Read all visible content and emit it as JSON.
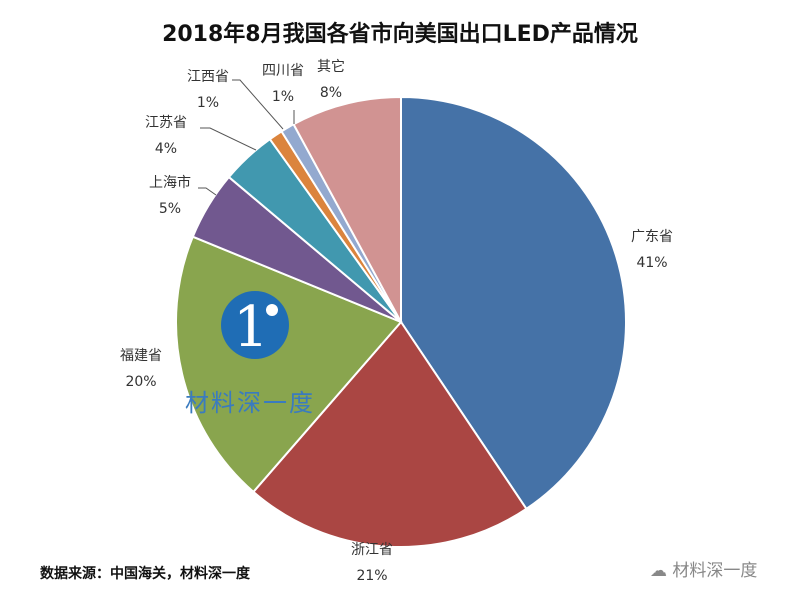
{
  "chart_data": {
    "type": "pie",
    "title": "2018年8月我国各省市向美国出口LED产品情况",
    "categories": [
      "广东省",
      "浙江省",
      "福建省",
      "上海市",
      "江苏省",
      "江西省",
      "四川省",
      "其它"
    ],
    "values": [
      41,
      21,
      20,
      5,
      4,
      1,
      1,
      8
    ],
    "labels": [
      "41%",
      "21%",
      "20%",
      "5%",
      "4%",
      "1%",
      "1%",
      "8%"
    ],
    "colors": [
      "#4572A7",
      "#AA4643",
      "#89A54E",
      "#71588F",
      "#4198AF",
      "#DB843D",
      "#93A9CF",
      "#D19392"
    ],
    "legend": "none"
  },
  "source": "数据来源：中国海关，材料深一度",
  "watermark": {
    "text": "材料深一度",
    "logo_color": "#1f6db5"
  },
  "wechat_mark": "材料深一度"
}
